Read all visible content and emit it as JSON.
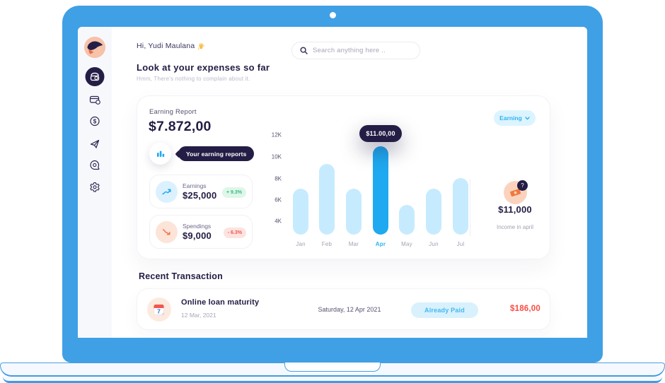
{
  "header": {
    "greeting": "Hi, Yudi Maulana",
    "search_placeholder": "Search anything here ..",
    "title": "Look at your expenses so far",
    "subtitle": "Hmm, There's nothing to complain about it."
  },
  "sidebar": {
    "items": [
      "avatar",
      "wallet-active",
      "card",
      "coin",
      "send",
      "chat",
      "settings"
    ]
  },
  "report": {
    "label": "Earning Report",
    "total": "$7.872,00",
    "tooltip": "Your earning reports",
    "earnings": {
      "label": "Earnings",
      "value": "$25,000",
      "delta": "+ 9.3%"
    },
    "spendings": {
      "label": "Spendings",
      "value": "$9,000",
      "delta": "- 6.3%"
    },
    "filter_label": "Earning",
    "income": {
      "value": "$11,000",
      "label": "Income in april",
      "badge": "?"
    }
  },
  "chart_data": {
    "type": "bar",
    "categories": [
      "Jan",
      "Feb",
      "Mar",
      "Apr",
      "May",
      "Jun",
      "Jul"
    ],
    "values": [
      7,
      9.3,
      7,
      11,
      5.5,
      7,
      8
    ],
    "unit": "K",
    "ylabels": [
      "12K",
      "10K",
      "8K",
      "6K",
      "4K"
    ],
    "ylim": [
      4,
      12
    ],
    "highlight_index": 3,
    "tooltip_value": "$11.00,00",
    "bar_color": "#C7EBFE",
    "highlight_color": "#1FA9F0"
  },
  "transactions": {
    "title": "Recent Transaction",
    "rows": [
      {
        "name": "Online loan maturity",
        "date": "12 Mar, 2021",
        "due": "Saturday, 12 Apr 2021",
        "status": "Already Paid",
        "amount": "$186,00",
        "icon_day": "7"
      }
    ]
  },
  "colors": {
    "laptop": "#3FA0E5",
    "navy": "#241E46",
    "accent": "#1FA9F0",
    "red": "#FB4B43",
    "green": "#35BD7C"
  }
}
